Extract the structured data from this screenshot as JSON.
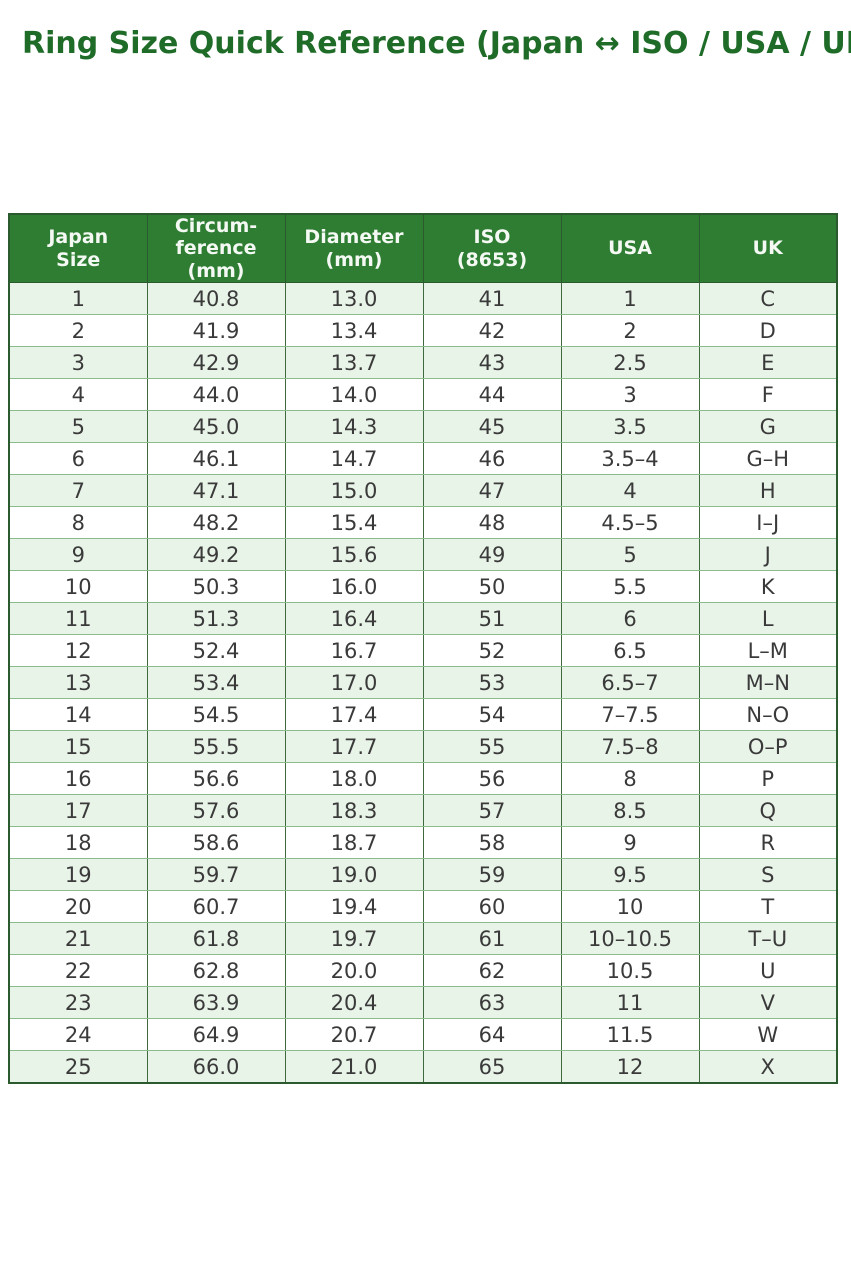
{
  "page": {
    "title": "Ring Size Quick Reference (Japan ↔ ISO / USA / UK)"
  },
  "chart_data": {
    "type": "table",
    "title": "Ring Size Quick Reference (Japan ↔ ISO / USA / UK)",
    "columns": [
      "Japan Size",
      "Circumference (mm)",
      "Diameter (mm)",
      "ISO (8653)",
      "USA",
      "UK"
    ],
    "header_display": [
      "Japan\nSize",
      "Circum-\nference\n(mm)",
      "Diameter\n(mm)",
      "ISO\n(8653)",
      "USA",
      "UK"
    ],
    "rows": [
      [
        "1",
        "40.8",
        "13.0",
        "41",
        "1",
        "C"
      ],
      [
        "2",
        "41.9",
        "13.4",
        "42",
        "2",
        "D"
      ],
      [
        "3",
        "42.9",
        "13.7",
        "43",
        "2.5",
        "E"
      ],
      [
        "4",
        "44.0",
        "14.0",
        "44",
        "3",
        "F"
      ],
      [
        "5",
        "45.0",
        "14.3",
        "45",
        "3.5",
        "G"
      ],
      [
        "6",
        "46.1",
        "14.7",
        "46",
        "3.5–4",
        "G–H"
      ],
      [
        "7",
        "47.1",
        "15.0",
        "47",
        "4",
        "H"
      ],
      [
        "8",
        "48.2",
        "15.4",
        "48",
        "4.5–5",
        "I–J"
      ],
      [
        "9",
        "49.2",
        "15.6",
        "49",
        "5",
        "J"
      ],
      [
        "10",
        "50.3",
        "16.0",
        "50",
        "5.5",
        "K"
      ],
      [
        "11",
        "51.3",
        "16.4",
        "51",
        "6",
        "L"
      ],
      [
        "12",
        "52.4",
        "16.7",
        "52",
        "6.5",
        "L–M"
      ],
      [
        "13",
        "53.4",
        "17.0",
        "53",
        "6.5–7",
        "M–N"
      ],
      [
        "14",
        "54.5",
        "17.4",
        "54",
        "7–7.5",
        "N–O"
      ],
      [
        "15",
        "55.5",
        "17.7",
        "55",
        "7.5–8",
        "O–P"
      ],
      [
        "16",
        "56.6",
        "18.0",
        "56",
        "8",
        "P"
      ],
      [
        "17",
        "57.6",
        "18.3",
        "57",
        "8.5",
        "Q"
      ],
      [
        "18",
        "58.6",
        "18.7",
        "58",
        "9",
        "R"
      ],
      [
        "19",
        "59.7",
        "19.0",
        "59",
        "9.5",
        "S"
      ],
      [
        "20",
        "60.7",
        "19.4",
        "60",
        "10",
        "T"
      ],
      [
        "21",
        "61.8",
        "19.7",
        "61",
        "10–10.5",
        "T–U"
      ],
      [
        "22",
        "62.8",
        "20.0",
        "62",
        "10.5",
        "U"
      ],
      [
        "23",
        "63.9",
        "20.4",
        "63",
        "11",
        "V"
      ],
      [
        "24",
        "64.9",
        "20.7",
        "64",
        "11.5",
        "W"
      ],
      [
        "25",
        "66.0",
        "21.0",
        "65",
        "12",
        "X"
      ]
    ],
    "layout": {
      "striped": true,
      "header_position": "top",
      "grid": true
    },
    "colors": {
      "title_text": "#1f6b28",
      "header_bg": "#2e7d32",
      "header_text": "#f4f9f4",
      "row_alt_bg": "#e9f4e9",
      "row_bg": "#ffffff",
      "cell_text": "#3a3a3a",
      "border_dark": "#40683f",
      "border_light": "#8abc8c",
      "outer_border": "#2c5a2f"
    }
  }
}
